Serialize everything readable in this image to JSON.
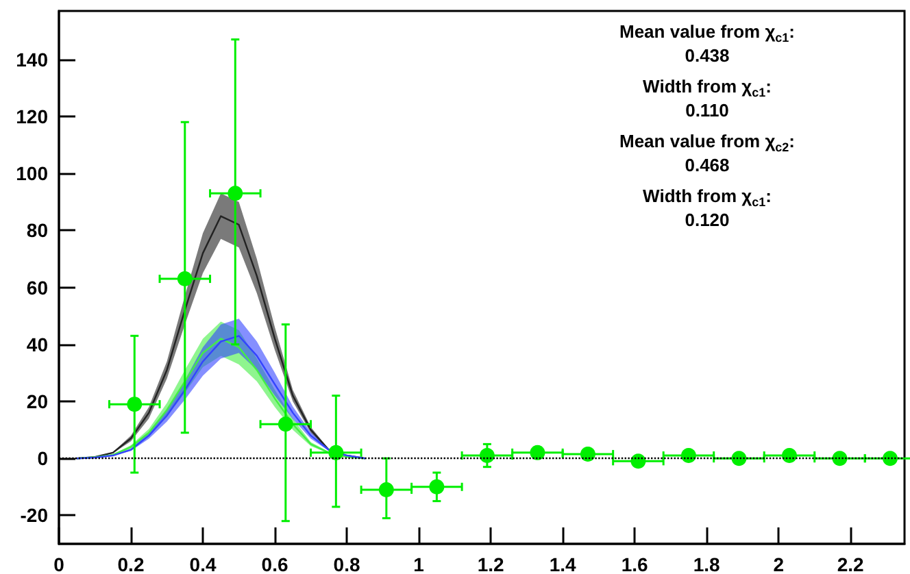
{
  "chart_data": {
    "type": "scatter",
    "xlim": [
      0,
      2.35
    ],
    "ylim": [
      -30,
      157
    ],
    "xticks": [
      0,
      0.2,
      0.4,
      0.6,
      0.8,
      1,
      1.2,
      1.4,
      1.6,
      1.8,
      2,
      2.2
    ],
    "yticks": [
      -20,
      0,
      20,
      40,
      60,
      80,
      100,
      120,
      140
    ],
    "grid": false,
    "marker": "circle",
    "series": [
      {
        "type": "line",
        "color": "#222222",
        "marker": "none",
        "line_style": "solid",
        "x": [
          0.05,
          0.1,
          0.15,
          0.2,
          0.25,
          0.3,
          0.35,
          0.4,
          0.45,
          0.5,
          0.55,
          0.6,
          0.65,
          0.7,
          0.75,
          0.8,
          0.85
        ],
        "values": [
          0,
          0.5,
          2,
          7,
          16,
          31,
          52,
          72,
          85,
          82,
          64,
          42,
          22,
          10,
          3,
          1,
          0
        ],
        "lower": [
          0,
          0.4,
          1.8,
          6,
          14,
          28,
          47,
          65,
          77,
          74,
          58,
          38,
          20,
          9,
          2.7,
          0.9,
          0
        ],
        "upper": [
          0,
          0.6,
          2.2,
          8,
          18,
          34,
          57,
          79,
          93,
          90,
          70,
          46,
          24,
          11,
          3.3,
          1.1,
          0
        ]
      },
      {
        "type": "line",
        "color": "#44ee44",
        "marker": "none",
        "line_style": "solid",
        "x": [
          0.05,
          0.1,
          0.15,
          0.2,
          0.25,
          0.3,
          0.35,
          0.4,
          0.45,
          0.5,
          0.55,
          0.6,
          0.65,
          0.7,
          0.75,
          0.8,
          0.85
        ],
        "values": [
          0,
          0.4,
          1.2,
          4,
          9,
          17,
          27,
          37,
          42,
          39,
          31,
          21,
          12,
          5,
          2,
          0.5,
          0
        ],
        "lower": [
          0,
          0.3,
          1,
          3.4,
          7.7,
          14.6,
          23,
          32,
          36,
          33,
          27,
          18,
          10,
          4.3,
          1.7,
          0.4,
          0
        ],
        "upper": [
          0,
          0.5,
          1.4,
          4.6,
          10.3,
          19.4,
          31,
          42,
          48,
          45,
          35,
          24,
          14,
          5.7,
          2.3,
          0.6,
          0
        ]
      },
      {
        "type": "line",
        "color": "#3344ff",
        "marker": "none",
        "line_style": "solid",
        "x": [
          0.05,
          0.1,
          0.15,
          0.2,
          0.25,
          0.3,
          0.35,
          0.4,
          0.45,
          0.5,
          0.55,
          0.6,
          0.65,
          0.7,
          0.75,
          0.8,
          0.85
        ],
        "values": [
          0,
          0.3,
          1,
          3,
          8,
          15,
          24,
          34,
          41,
          43,
          36,
          26,
          16,
          8,
          3,
          1,
          0
        ],
        "lower": [
          0,
          0.26,
          0.86,
          2.6,
          6.9,
          12.9,
          20.6,
          29,
          35,
          37,
          31,
          22,
          13.8,
          6.9,
          2.6,
          0.86,
          0
        ],
        "upper": [
          0,
          0.34,
          1.14,
          3.4,
          9.1,
          17.1,
          27.4,
          39,
          47,
          49,
          41,
          30,
          18.2,
          9.1,
          3.4,
          1.14,
          0
        ]
      },
      {
        "color": "#00ee00",
        "x": [
          0.21,
          0.35,
          0.49,
          0.63,
          0.77,
          0.91,
          1.05,
          1.19,
          1.33,
          1.47,
          1.61,
          1.75,
          1.89,
          2.03,
          2.17,
          2.31
        ],
        "values": [
          19,
          63,
          93,
          12,
          2,
          -11,
          -10,
          1,
          2,
          1.5,
          -1,
          1,
          0,
          1,
          0,
          0
        ],
        "errors": [
          [
            -5,
            43
          ],
          [
            9,
            118
          ],
          [
            40,
            147
          ],
          [
            -22,
            47
          ],
          [
            -17,
            22
          ],
          [
            -21,
            0
          ],
          [
            -15,
            -5
          ],
          [
            -3,
            5
          ],
          [
            1,
            3
          ],
          [
            0.5,
            2.5
          ],
          [
            -2,
            0
          ],
          [
            0,
            2
          ],
          [
            -1,
            1
          ],
          [
            0,
            2
          ],
          [
            -1,
            1
          ],
          [
            -1,
            1
          ]
        ],
        "xerrors": [
          0.07,
          0.07,
          0.07,
          0.07,
          0.07,
          0.07,
          0.07,
          0.07,
          0.07,
          0.07,
          0.07,
          0.07,
          0.07,
          0.07,
          0.07,
          0.07
        ]
      }
    ],
    "ref_lines": [
      {
        "axis": "y",
        "value": 0,
        "color": "#000000",
        "line_style": "dotted"
      }
    ],
    "annotations": [
      "Mean value from χ$_{c1}$:",
      "0.438",
      "Width from χ$_{c1}$:",
      "0.110",
      "Mean value from χ$_{c2}$:",
      "0.468",
      "Width from χ$_{c1}$:",
      "0.120"
    ]
  }
}
